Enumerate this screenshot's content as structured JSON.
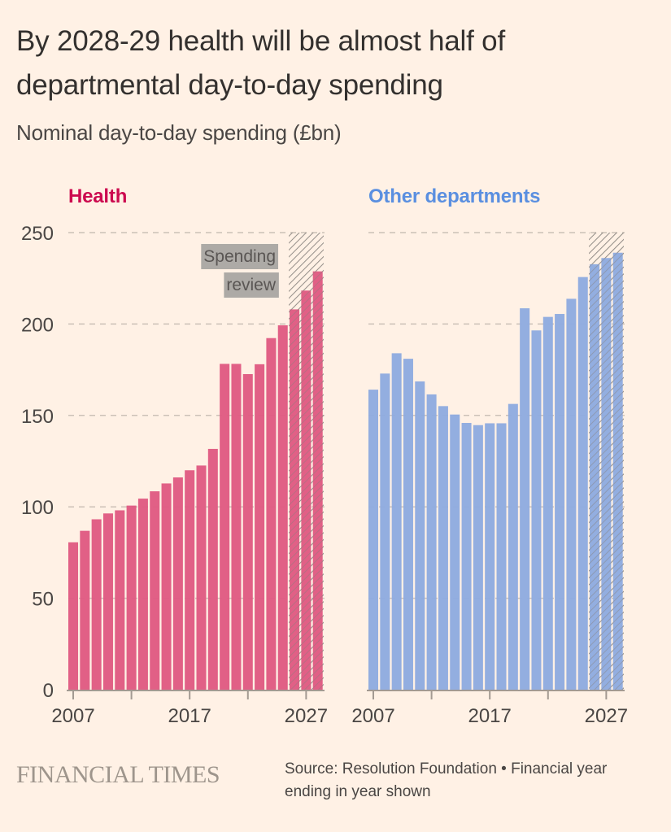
{
  "header": {
    "title": "By 2028-29 health will be almost half of departmental day-to-day spending",
    "subtitle": "Nominal day-to-day spending (£bn)"
  },
  "footer": {
    "logo": "FINANCIAL TIMES",
    "source": "Source: Resolution Foundation • Financial year ending in year shown"
  },
  "colors": {
    "background": "#fff1e5",
    "health": "#e05a82",
    "health_title": "#cc0a4f",
    "other": "#8fabe0",
    "other_title": "#5a8fe0",
    "grid": "#ccc1b7",
    "hatch": "#8a8580",
    "annotation_bg": "#adaaa6"
  },
  "chart_data": [
    {
      "type": "bar",
      "title": "Health",
      "xlabel": "",
      "ylabel": "Nominal day-to-day spending (£bn)",
      "ylim": [
        0,
        250
      ],
      "yticks": [
        0,
        50,
        100,
        150,
        200,
        250
      ],
      "xticks": [
        2007,
        2012,
        2017,
        2022,
        2027
      ],
      "xtick_labels": [
        "2007",
        "",
        "2017",
        "",
        "2027"
      ],
      "grid": true,
      "categories": [
        2007,
        2008,
        2009,
        2010,
        2011,
        2012,
        2013,
        2014,
        2015,
        2016,
        2017,
        2018,
        2019,
        2020,
        2021,
        2022,
        2023,
        2024,
        2025,
        2026,
        2027,
        2028
      ],
      "values": [
        80.6,
        86.9,
        93.2,
        96.4,
        98.1,
        100.7,
        104.5,
        108.5,
        112.8,
        116.1,
        120,
        122.6,
        131.7,
        178.2,
        178.2,
        172.6,
        178,
        192.3,
        199.3,
        208,
        218.3,
        228.8
      ],
      "shaded_region": {
        "from": 2026,
        "to": 2028,
        "label": "Spending review",
        "label_lines": [
          "Spending",
          "review"
        ]
      }
    },
    {
      "type": "bar",
      "title": "Other departments",
      "xlabel": "",
      "ylabel": "Nominal day-to-day spending (£bn)",
      "ylim": [
        0,
        250
      ],
      "yticks": [
        0,
        50,
        100,
        150,
        200,
        250
      ],
      "xticks": [
        2007,
        2012,
        2017,
        2022,
        2027
      ],
      "xtick_labels": [
        "2007",
        "",
        "2017",
        "",
        "2027"
      ],
      "grid": true,
      "categories": [
        2007,
        2008,
        2009,
        2010,
        2011,
        2012,
        2013,
        2014,
        2015,
        2016,
        2017,
        2018,
        2019,
        2020,
        2021,
        2022,
        2023,
        2024,
        2025,
        2026,
        2027,
        2028
      ],
      "values": [
        164.1,
        172.9,
        184,
        181,
        168.6,
        161.5,
        155.1,
        150.5,
        145.9,
        144.7,
        145.7,
        145.7,
        156.3,
        208.6,
        196.5,
        203.9,
        205.5,
        213.8,
        225.7,
        232.7,
        236.1,
        239
      ],
      "shaded_region": {
        "from": 2026,
        "to": 2028
      }
    }
  ]
}
